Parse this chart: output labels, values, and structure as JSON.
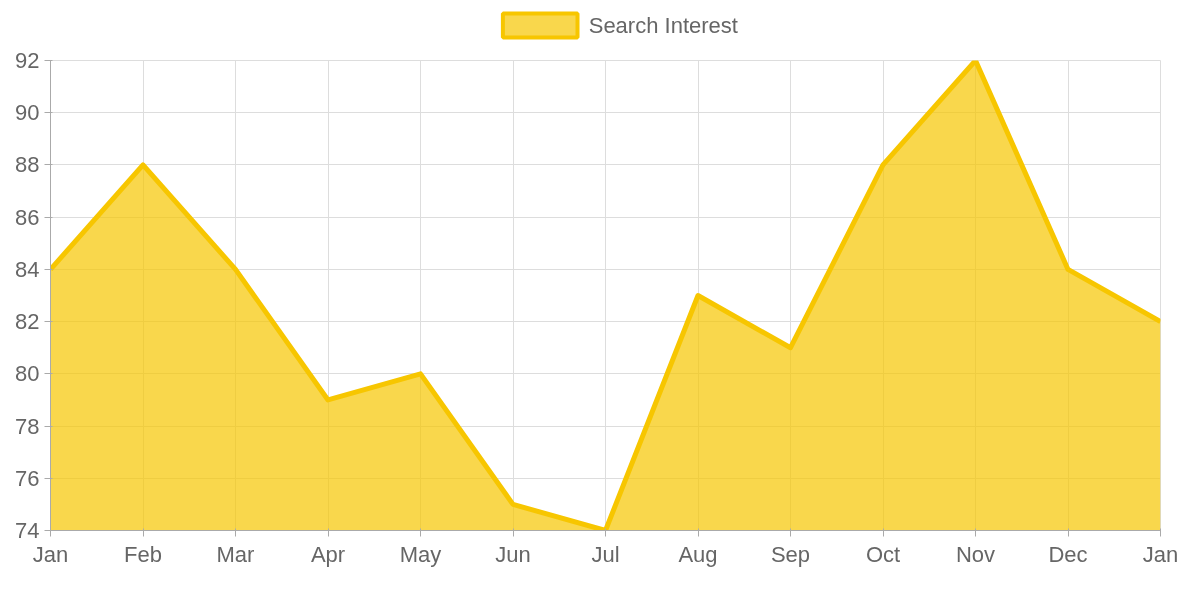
{
  "chart_data": {
    "type": "area",
    "categories": [
      "Jan",
      "Feb",
      "Mar",
      "Apr",
      "May",
      "Jun",
      "Jul",
      "Aug",
      "Sep",
      "Oct",
      "Nov",
      "Dec",
      "Jan"
    ],
    "series": [
      {
        "name": "Search Interest",
        "color": "#f7c600",
        "values": [
          84,
          88,
          84,
          79,
          80,
          75,
          74,
          83,
          81,
          88,
          92,
          84,
          82
        ]
      }
    ],
    "ylim": [
      74,
      92
    ],
    "yticks": [
      74,
      76,
      78,
      80,
      82,
      84,
      86,
      88,
      90,
      92
    ],
    "grid": true,
    "legend": "top",
    "marker": "none",
    "line_style": "solid"
  }
}
